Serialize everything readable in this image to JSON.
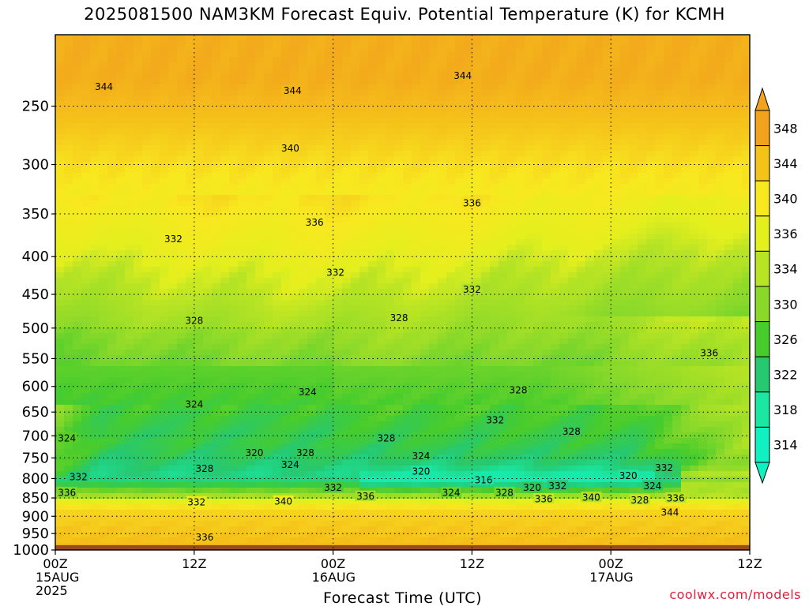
{
  "title": "2025081500 NAM3KM Forecast Equiv. Potential Temperature (K) for KCMH",
  "credit": "coolwx.com/models",
  "chart_data": {
    "type": "heatmap",
    "title": "2025081500 NAM3KM Forecast Equiv. Potential Temperature (K) for KCMH",
    "xlabel": "Forecast Time (UTC)",
    "ylabel": "",
    "x_range_hours": [
      0,
      60
    ],
    "y_range_hpa": [
      1000,
      200
    ],
    "y_scale": "log",
    "x_ticks": [
      {
        "h": 0,
        "label": "00Z",
        "sub": [
          "15AUG",
          "2025"
        ]
      },
      {
        "h": 12,
        "label": "12Z",
        "sub": []
      },
      {
        "h": 24,
        "label": "00Z",
        "sub": [
          "16AUG"
        ]
      },
      {
        "h": 36,
        "label": "12Z",
        "sub": []
      },
      {
        "h": 48,
        "label": "00Z",
        "sub": [
          "17AUG"
        ]
      },
      {
        "h": 60,
        "label": "12Z",
        "sub": []
      }
    ],
    "y_ticks": [
      1000,
      950,
      900,
      850,
      800,
      750,
      700,
      650,
      600,
      550,
      500,
      450,
      400,
      350,
      300,
      250
    ],
    "grid": true,
    "colorbar": {
      "unit": "K",
      "labels": [
        348,
        344,
        340,
        336,
        334,
        330,
        326,
        322,
        318,
        314
      ],
      "colors": [
        "#f2a21c",
        "#f5c21a",
        "#f8e820",
        "#e4ef1e",
        "#b8e424",
        "#8ad92a",
        "#48cc2c",
        "#26c870",
        "#1ae7a2",
        "#10f0c0"
      ]
    },
    "ground_color": "#9a4a20",
    "contour_labels": [
      {
        "text": "344",
        "h": 4.2,
        "p": 235
      },
      {
        "text": "344",
        "h": 20.5,
        "p": 238
      },
      {
        "text": "344",
        "h": 35.2,
        "p": 227
      },
      {
        "text": "340",
        "h": 20.3,
        "p": 285
      },
      {
        "text": "336",
        "h": 22.4,
        "p": 359
      },
      {
        "text": "336",
        "h": 36.0,
        "p": 338
      },
      {
        "text": "332",
        "h": 10.2,
        "p": 378
      },
      {
        "text": "332",
        "h": 24.2,
        "p": 420
      },
      {
        "text": "332",
        "h": 36.0,
        "p": 443
      },
      {
        "text": "328",
        "h": 12.0,
        "p": 488
      },
      {
        "text": "328",
        "h": 29.7,
        "p": 484
      },
      {
        "text": "336",
        "h": 56.5,
        "p": 540
      },
      {
        "text": "324",
        "h": 21.8,
        "p": 610
      },
      {
        "text": "328",
        "h": 40.0,
        "p": 606
      },
      {
        "text": "324",
        "h": 12.0,
        "p": 634
      },
      {
        "text": "332",
        "h": 38.0,
        "p": 666
      },
      {
        "text": "328",
        "h": 44.6,
        "p": 690
      },
      {
        "text": "328",
        "h": 28.6,
        "p": 705
      },
      {
        "text": "324",
        "h": 1.0,
        "p": 705
      },
      {
        "text": "320",
        "h": 17.2,
        "p": 738
      },
      {
        "text": "328",
        "h": 21.6,
        "p": 738
      },
      {
        "text": "324",
        "h": 31.6,
        "p": 745
      },
      {
        "text": "324",
        "h": 20.3,
        "p": 765
      },
      {
        "text": "328",
        "h": 12.9,
        "p": 775
      },
      {
        "text": "320",
        "h": 31.6,
        "p": 782
      },
      {
        "text": "332",
        "h": 52.6,
        "p": 773
      },
      {
        "text": "320",
        "h": 49.5,
        "p": 792
      },
      {
        "text": "332",
        "h": 2.0,
        "p": 795
      },
      {
        "text": "316",
        "h": 37.0,
        "p": 803
      },
      {
        "text": "324",
        "h": 51.6,
        "p": 818
      },
      {
        "text": "332",
        "h": 24.0,
        "p": 822
      },
      {
        "text": "320",
        "h": 41.2,
        "p": 822
      },
      {
        "text": "332",
        "h": 43.4,
        "p": 818
      },
      {
        "text": "324",
        "h": 34.2,
        "p": 835
      },
      {
        "text": "328",
        "h": 38.8,
        "p": 835
      },
      {
        "text": "336",
        "h": 1.0,
        "p": 835
      },
      {
        "text": "336",
        "h": 26.8,
        "p": 845
      },
      {
        "text": "340",
        "h": 46.3,
        "p": 848
      },
      {
        "text": "336",
        "h": 42.2,
        "p": 852
      },
      {
        "text": "336",
        "h": 53.6,
        "p": 850
      },
      {
        "text": "328",
        "h": 50.5,
        "p": 855
      },
      {
        "text": "332",
        "h": 12.2,
        "p": 860
      },
      {
        "text": "340",
        "h": 19.7,
        "p": 858
      },
      {
        "text": "344",
        "h": 53.1,
        "p": 888
      },
      {
        "text": "336",
        "h": 12.9,
        "p": 960
      }
    ]
  }
}
